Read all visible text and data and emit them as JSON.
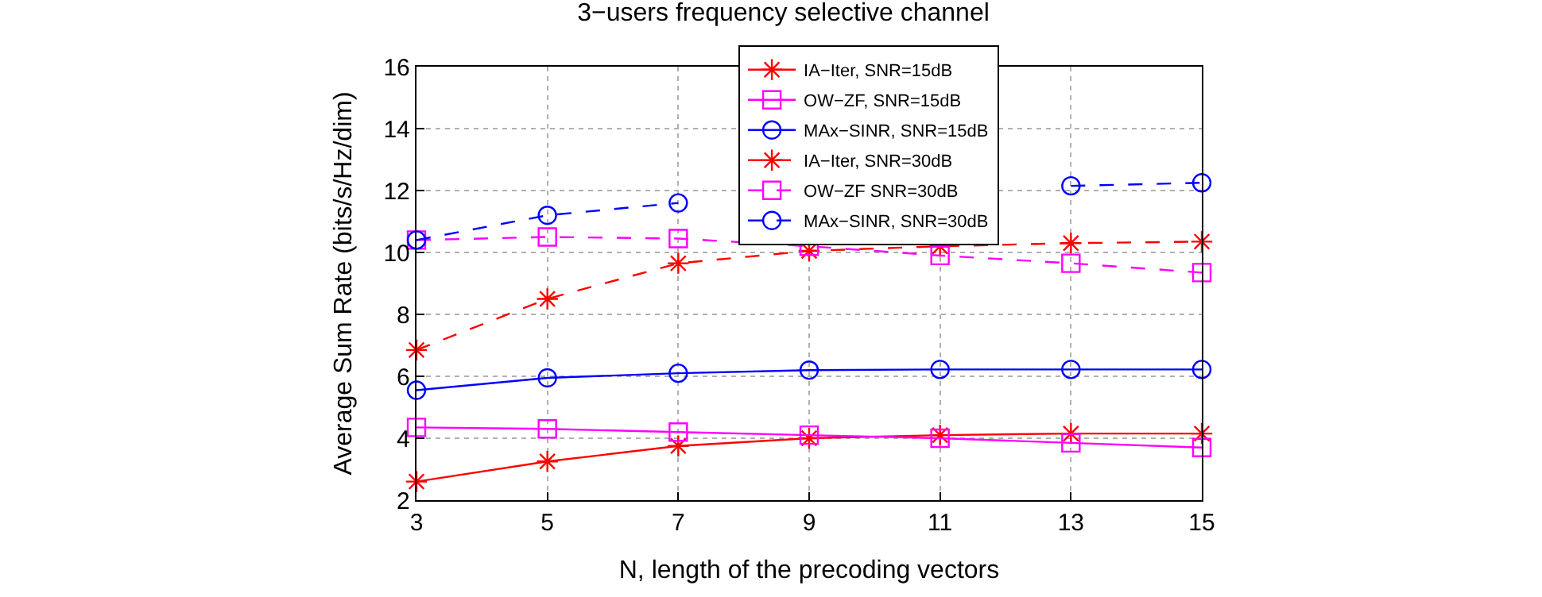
{
  "chart_data": {
    "type": "line",
    "title": "3−users frequency selective channel",
    "xlabel": "N, length of the precoding vectors",
    "ylabel": "Average Sum Rate (bits/s/Hz/dim)",
    "x": [
      3,
      5,
      7,
      9,
      11,
      13,
      15
    ],
    "xlim": [
      3,
      15
    ],
    "xticks": [
      3,
      5,
      7,
      9,
      11,
      13,
      15
    ],
    "ylim": [
      2,
      16
    ],
    "yticks": [
      2,
      4,
      6,
      8,
      10,
      12,
      14,
      16
    ],
    "grid": true,
    "legend": "top",
    "series": [
      {
        "name": "IA−Iter, SNR=15dB",
        "color": "#ff0000",
        "marker": "cross",
        "line_style": "solid",
        "values": [
          2.6,
          3.25,
          3.75,
          4.0,
          4.1,
          4.15,
          4.15
        ]
      },
      {
        "name": "OW−ZF, SNR=15dB",
        "color": "#ff00ff",
        "marker": "square",
        "line_style": "solid",
        "values": [
          4.35,
          4.3,
          4.2,
          4.1,
          4.0,
          3.85,
          3.7
        ]
      },
      {
        "name": "MAx−SINR, SNR=15dB",
        "color": "#0000ff",
        "marker": "circle",
        "line_style": "solid",
        "values": [
          5.55,
          5.95,
          6.1,
          6.2,
          6.22,
          6.22,
          6.22
        ]
      },
      {
        "name": "IA−Iter, SNR=30dB",
        "color": "#ff0000",
        "marker": "cross",
        "line_style": "dashed",
        "values": [
          6.85,
          8.5,
          9.65,
          10.05,
          10.2,
          10.3,
          10.35
        ]
      },
      {
        "name": "OW−ZF SNR=30dB",
        "color": "#ff00ff",
        "marker": "square",
        "line_style": "dashed",
        "values": [
          10.4,
          10.5,
          10.45,
          10.2,
          9.9,
          9.65,
          9.35
        ]
      },
      {
        "name": "MAx−SINR, SNR=30dB",
        "color": "#0000ff",
        "marker": "circle",
        "line_style": "dashed",
        "values": [
          10.4,
          11.2,
          11.6,
          null,
          null,
          12.15,
          12.25
        ]
      }
    ]
  }
}
